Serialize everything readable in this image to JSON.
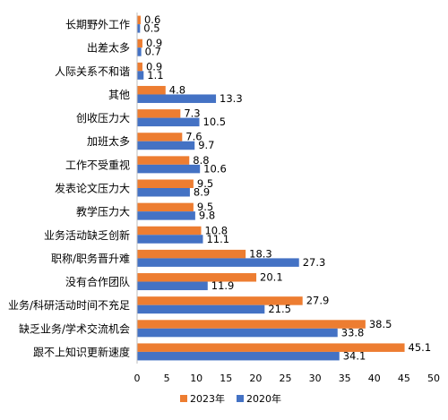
{
  "chart_data": {
    "type": "bar",
    "orientation": "horizontal",
    "categories": [
      "长期野外工作",
      "出差太多",
      "人际关系不和谐",
      "其他",
      "创收压力大",
      "加班太多",
      "工作不受重视",
      "发表论文压力大",
      "教学压力大",
      "业务活动缺乏创新",
      "职称/职务晋升难",
      "没有合作团队",
      "业务/科研活动时间不充足",
      "缺乏业务/学术交流机会",
      "跟不上知识更新速度"
    ],
    "series": [
      {
        "name": "2023年",
        "color": "#ED7D31",
        "values": [
          0.6,
          0.9,
          0.9,
          4.8,
          7.3,
          7.6,
          8.8,
          9.5,
          9.5,
          10.8,
          18.3,
          20.1,
          27.9,
          38.5,
          45.1
        ]
      },
      {
        "name": "2020年",
        "color": "#4472C4",
        "values": [
          0.5,
          0.7,
          1.1,
          13.3,
          10.5,
          9.7,
          10.6,
          8.9,
          9.8,
          11.1,
          27.3,
          11.9,
          21.5,
          33.8,
          34.1
        ]
      }
    ],
    "xlim": [
      0,
      50
    ],
    "xticks": [
      "0",
      "5",
      "10",
      "15",
      "20",
      "25",
      "30",
      "35",
      "40",
      "45",
      "50"
    ],
    "title": "",
    "xlabel": "",
    "ylabel": "",
    "grid": false,
    "legend_position": "bottom"
  }
}
